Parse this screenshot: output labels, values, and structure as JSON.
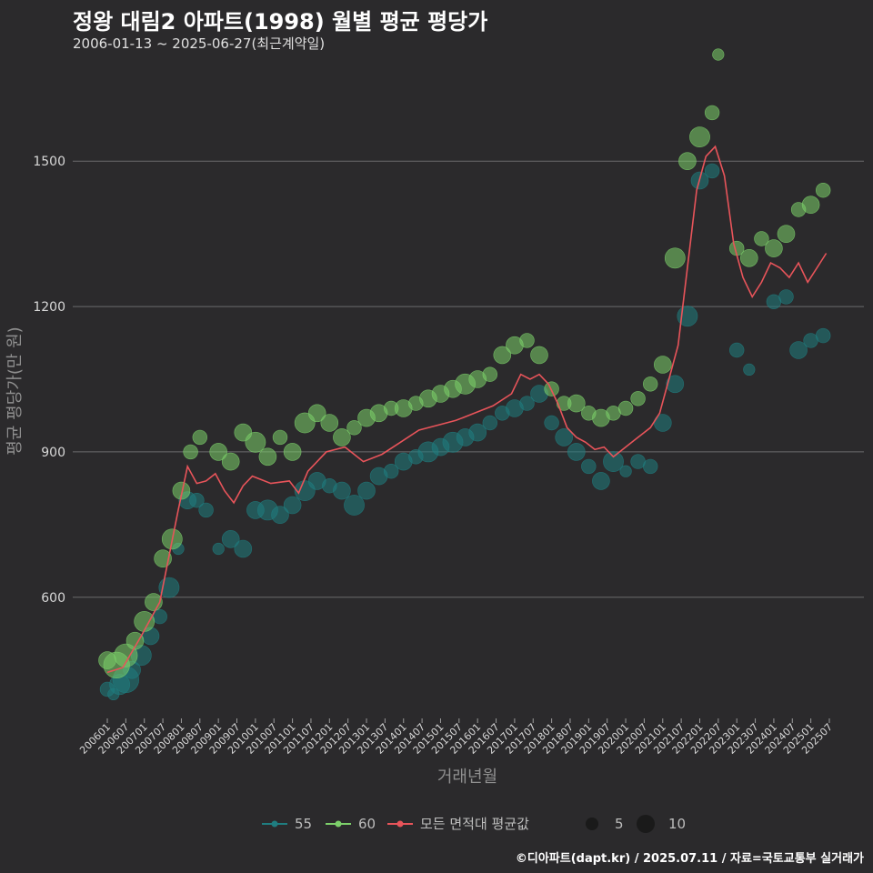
{
  "title": "정왕 대림2 아파트(1998) 월별 평균 평당가",
  "subtitle": "2006-01-13 ~ 2025-06-27(최근계약일)",
  "source": "©디아파트(dapt.kr) / 2025.07.11 / 자료=국토교통부 실거래가",
  "colors": {
    "background": "#2b2a2c",
    "s55": "#1f7d80",
    "s60": "#7ccf6a",
    "avg": "#e8545a",
    "grid": "#6b6b6b"
  },
  "chart_data": {
    "type": "scatter",
    "title": "정왕 대림2 아파트(1998) 월별 평균 평당가",
    "subtitle": "2006-01-13 ~ 2025-06-27(최근계약일)",
    "xlabel": "거래년월",
    "ylabel": "평균 평당가(만 원)",
    "ylim": [
      350,
      1720
    ],
    "yticks": [
      600,
      900,
      1200,
      1500
    ],
    "xticks": [
      "200601",
      "200607",
      "200701",
      "200707",
      "200801",
      "200807",
      "200901",
      "200907",
      "201001",
      "201007",
      "201101",
      "201107",
      "201201",
      "201207",
      "201301",
      "201307",
      "201401",
      "201407",
      "201501",
      "201507",
      "201601",
      "201607",
      "201701",
      "201707",
      "201801",
      "201807",
      "201901",
      "201907",
      "202001",
      "202007",
      "202101",
      "202107",
      "202201",
      "202207",
      "202301",
      "202307",
      "202401",
      "202407",
      "202501",
      "202507"
    ],
    "legend": {
      "series": [
        "55",
        "60",
        "모든 면적대 평균값"
      ],
      "size_title": "",
      "sizes": [
        5,
        10
      ]
    },
    "series": [
      {
        "name": "55",
        "color": "#1f7d80",
        "points": [
          [
            "2006-01",
            410,
            4
          ],
          [
            "2006-03",
            400,
            3
          ],
          [
            "2006-05",
            420,
            6
          ],
          [
            "2006-07",
            430,
            8
          ],
          [
            "2006-09",
            450,
            5
          ],
          [
            "2006-12",
            480,
            6
          ],
          [
            "2007-03",
            520,
            5
          ],
          [
            "2007-06",
            560,
            4
          ],
          [
            "2007-09",
            620,
            6
          ],
          [
            "2007-12",
            700,
            3
          ],
          [
            "2008-03",
            800,
            5
          ],
          [
            "2008-06",
            800,
            4
          ],
          [
            "2008-09",
            780,
            4
          ],
          [
            "2009-01",
            700,
            3
          ],
          [
            "2009-05",
            720,
            5
          ],
          [
            "2009-09",
            700,
            5
          ],
          [
            "2010-01",
            780,
            5
          ],
          [
            "2010-05",
            780,
            6
          ],
          [
            "2010-09",
            770,
            5
          ],
          [
            "2011-01",
            790,
            5
          ],
          [
            "2011-05",
            820,
            6
          ],
          [
            "2011-09",
            840,
            5
          ],
          [
            "2012-01",
            830,
            4
          ],
          [
            "2012-05",
            820,
            5
          ],
          [
            "2012-09",
            790,
            6
          ],
          [
            "2013-01",
            820,
            5
          ],
          [
            "2013-05",
            850,
            5
          ],
          [
            "2013-09",
            860,
            4
          ],
          [
            "2014-01",
            880,
            5
          ],
          [
            "2014-05",
            890,
            4
          ],
          [
            "2014-09",
            900,
            6
          ],
          [
            "2015-01",
            910,
            5
          ],
          [
            "2015-05",
            920,
            6
          ],
          [
            "2015-09",
            930,
            5
          ],
          [
            "2016-01",
            940,
            5
          ],
          [
            "2016-05",
            960,
            4
          ],
          [
            "2016-09",
            980,
            4
          ],
          [
            "2017-01",
            990,
            5
          ],
          [
            "2017-05",
            1000,
            4
          ],
          [
            "2017-09",
            1020,
            5
          ],
          [
            "2018-01",
            960,
            4
          ],
          [
            "2018-05",
            930,
            5
          ],
          [
            "2018-09",
            900,
            5
          ],
          [
            "2019-01",
            870,
            4
          ],
          [
            "2019-05",
            840,
            5
          ],
          [
            "2019-09",
            880,
            6
          ],
          [
            "2020-01",
            860,
            3
          ],
          [
            "2020-05",
            880,
            4
          ],
          [
            "2020-09",
            870,
            4
          ],
          [
            "2021-01",
            960,
            5
          ],
          [
            "2021-05",
            1040,
            5
          ],
          [
            "2021-09",
            1180,
            6
          ],
          [
            "2022-01",
            1460,
            5
          ],
          [
            "2022-05",
            1480,
            4
          ],
          [
            "2023-01",
            1110,
            4
          ],
          [
            "2023-05",
            1070,
            3
          ],
          [
            "2024-01",
            1210,
            4
          ],
          [
            "2024-05",
            1220,
            4
          ],
          [
            "2024-09",
            1110,
            5
          ],
          [
            "2025-01",
            1130,
            4
          ],
          [
            "2025-05",
            1140,
            4
          ]
        ]
      },
      {
        "name": "60",
        "color": "#7ccf6a",
        "points": [
          [
            "2006-01",
            470,
            5
          ],
          [
            "2006-04",
            460,
            8
          ],
          [
            "2006-07",
            480,
            7
          ],
          [
            "2006-10",
            510,
            5
          ],
          [
            "2007-01",
            550,
            6
          ],
          [
            "2007-04",
            590,
            5
          ],
          [
            "2007-07",
            680,
            5
          ],
          [
            "2007-10",
            720,
            6
          ],
          [
            "2008-01",
            820,
            5
          ],
          [
            "2008-04",
            900,
            4
          ],
          [
            "2008-07",
            930,
            4
          ],
          [
            "2009-01",
            900,
            5
          ],
          [
            "2009-05",
            880,
            5
          ],
          [
            "2009-09",
            940,
            5
          ],
          [
            "2010-01",
            920,
            6
          ],
          [
            "2010-05",
            890,
            5
          ],
          [
            "2010-09",
            930,
            4
          ],
          [
            "2011-01",
            900,
            5
          ],
          [
            "2011-05",
            960,
            6
          ],
          [
            "2011-09",
            980,
            5
          ],
          [
            "2012-01",
            960,
            5
          ],
          [
            "2012-05",
            930,
            5
          ],
          [
            "2012-09",
            950,
            4
          ],
          [
            "2013-01",
            970,
            5
          ],
          [
            "2013-05",
            980,
            5
          ],
          [
            "2013-09",
            990,
            4
          ],
          [
            "2014-01",
            990,
            5
          ],
          [
            "2014-05",
            1000,
            4
          ],
          [
            "2014-09",
            1010,
            5
          ],
          [
            "2015-01",
            1020,
            5
          ],
          [
            "2015-05",
            1030,
            5
          ],
          [
            "2015-09",
            1040,
            6
          ],
          [
            "2016-01",
            1050,
            5
          ],
          [
            "2016-05",
            1060,
            4
          ],
          [
            "2016-09",
            1100,
            5
          ],
          [
            "2017-01",
            1120,
            5
          ],
          [
            "2017-05",
            1130,
            4
          ],
          [
            "2017-09",
            1100,
            5
          ],
          [
            "2018-01",
            1030,
            4
          ],
          [
            "2018-05",
            1000,
            4
          ],
          [
            "2018-09",
            1000,
            5
          ],
          [
            "2019-01",
            980,
            4
          ],
          [
            "2019-05",
            970,
            5
          ],
          [
            "2019-09",
            980,
            4
          ],
          [
            "2020-01",
            990,
            4
          ],
          [
            "2020-05",
            1010,
            4
          ],
          [
            "2020-09",
            1040,
            4
          ],
          [
            "2021-01",
            1080,
            5
          ],
          [
            "2021-05",
            1300,
            6
          ],
          [
            "2021-09",
            1500,
            5
          ],
          [
            "2022-01",
            1550,
            6
          ],
          [
            "2022-05",
            1600,
            4
          ],
          [
            "2022-07",
            1720,
            3
          ],
          [
            "2023-01",
            1320,
            4
          ],
          [
            "2023-05",
            1300,
            5
          ],
          [
            "2023-09",
            1340,
            4
          ],
          [
            "2024-01",
            1320,
            5
          ],
          [
            "2024-05",
            1350,
            5
          ],
          [
            "2024-09",
            1400,
            4
          ],
          [
            "2025-01",
            1410,
            5
          ],
          [
            "2025-05",
            1440,
            4
          ]
        ]
      }
    ],
    "average": [
      [
        "2006-01",
        445
      ],
      [
        "2006-06",
        455
      ],
      [
        "2006-12",
        520
      ],
      [
        "2007-06",
        590
      ],
      [
        "2007-12",
        780
      ],
      [
        "2008-03",
        870
      ],
      [
        "2008-06",
        835
      ],
      [
        "2008-09",
        840
      ],
      [
        "2008-12",
        855
      ],
      [
        "2009-03",
        820
      ],
      [
        "2009-06",
        795
      ],
      [
        "2009-09",
        830
      ],
      [
        "2009-12",
        850
      ],
      [
        "2010-06",
        835
      ],
      [
        "2010-12",
        840
      ],
      [
        "2011-03",
        815
      ],
      [
        "2011-06",
        860
      ],
      [
        "2011-12",
        900
      ],
      [
        "2012-06",
        910
      ],
      [
        "2012-12",
        880
      ],
      [
        "2013-06",
        895
      ],
      [
        "2013-12",
        920
      ],
      [
        "2014-06",
        945
      ],
      [
        "2014-12",
        955
      ],
      [
        "2015-06",
        965
      ],
      [
        "2015-12",
        980
      ],
      [
        "2016-06",
        995
      ],
      [
        "2016-12",
        1020
      ],
      [
        "2017-03",
        1060
      ],
      [
        "2017-06",
        1050
      ],
      [
        "2017-09",
        1060
      ],
      [
        "2017-12",
        1040
      ],
      [
        "2018-03",
        1000
      ],
      [
        "2018-06",
        950
      ],
      [
        "2018-09",
        930
      ],
      [
        "2018-12",
        920
      ],
      [
        "2019-03",
        905
      ],
      [
        "2019-06",
        910
      ],
      [
        "2019-09",
        890
      ],
      [
        "2019-12",
        905
      ],
      [
        "2020-03",
        920
      ],
      [
        "2020-06",
        935
      ],
      [
        "2020-09",
        950
      ],
      [
        "2020-12",
        980
      ],
      [
        "2021-03",
        1050
      ],
      [
        "2021-06",
        1120
      ],
      [
        "2021-09",
        1280
      ],
      [
        "2021-12",
        1440
      ],
      [
        "2022-03",
        1510
      ],
      [
        "2022-06",
        1530
      ],
      [
        "2022-09",
        1470
      ],
      [
        "2022-12",
        1330
      ],
      [
        "2023-03",
        1260
      ],
      [
        "2023-06",
        1220
      ],
      [
        "2023-09",
        1250
      ],
      [
        "2023-12",
        1290
      ],
      [
        "2024-03",
        1280
      ],
      [
        "2024-06",
        1260
      ],
      [
        "2024-09",
        1290
      ],
      [
        "2024-12",
        1250
      ],
      [
        "2025-03",
        1280
      ],
      [
        "2025-06",
        1310
      ]
    ]
  }
}
